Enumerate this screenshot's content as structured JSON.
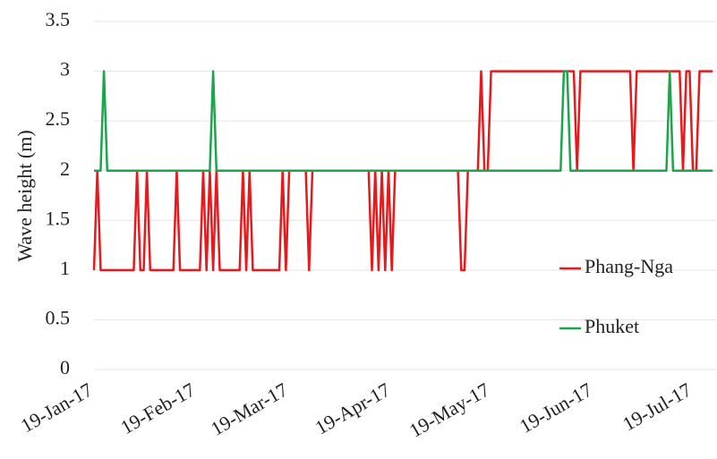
{
  "chart_data": {
    "type": "line",
    "y_label": "Wave height (m)",
    "ylim": [
      0,
      3.5
    ],
    "yticks": [
      0,
      0.5,
      1,
      1.5,
      2,
      2.5,
      3,
      3.5
    ],
    "xlim": [
      "2017-01-19",
      "2017-07-26"
    ],
    "xticks": [
      {
        "value": "2017-01-19",
        "label": "19-Jan-17"
      },
      {
        "value": "2017-02-19",
        "label": "19-Feb-17"
      },
      {
        "value": "2017-03-19",
        "label": "19-Mar-17"
      },
      {
        "value": "2017-04-19",
        "label": "19-Apr-17"
      },
      {
        "value": "2017-05-19",
        "label": "19-May-17"
      },
      {
        "value": "2017-06-19",
        "label": "19-Jun-17"
      },
      {
        "value": "2017-07-19",
        "label": "19-Jul-17"
      }
    ],
    "grid": true,
    "legend": "right",
    "series": [
      {
        "name": "Phang-Nga",
        "color": "#e8191c",
        "x": [
          "2017-01-19",
          "2017-01-20",
          "2017-01-21",
          "2017-01-31",
          "2017-02-01",
          "2017-02-02",
          "2017-02-03",
          "2017-02-04",
          "2017-02-05",
          "2017-02-12",
          "2017-02-13",
          "2017-02-14",
          "2017-02-20",
          "2017-02-21",
          "2017-02-22",
          "2017-02-23",
          "2017-02-24",
          "2017-02-25",
          "2017-02-26",
          "2017-03-04",
          "2017-03-05",
          "2017-03-06",
          "2017-03-07",
          "2017-03-08",
          "2017-03-16",
          "2017-03-17",
          "2017-03-18",
          "2017-03-19",
          "2017-03-24",
          "2017-03-25",
          "2017-03-26",
          "2017-04-12",
          "2017-04-13",
          "2017-04-14",
          "2017-04-15",
          "2017-04-16",
          "2017-04-17",
          "2017-04-18",
          "2017-04-19",
          "2017-04-20",
          "2017-05-09",
          "2017-05-10",
          "2017-05-11",
          "2017-05-12",
          "2017-05-15",
          "2017-05-16",
          "2017-05-17",
          "2017-05-18",
          "2017-05-19",
          "2017-06-13",
          "2017-06-14",
          "2017-06-15",
          "2017-06-30",
          "2017-07-01",
          "2017-07-02",
          "2017-07-15",
          "2017-07-16",
          "2017-07-17",
          "2017-07-18",
          "2017-07-19",
          "2017-07-20",
          "2017-07-21",
          "2017-07-25"
        ],
        "values": [
          1,
          2,
          1,
          1,
          2,
          1,
          1,
          2,
          1,
          1,
          2,
          1,
          1,
          2,
          1,
          2,
          1,
          2,
          1,
          1,
          2,
          1,
          2,
          1,
          1,
          2,
          1,
          2,
          2,
          1,
          2,
          2,
          1,
          2,
          1,
          2,
          1,
          2,
          1,
          2,
          2,
          1,
          1,
          2,
          2,
          3,
          2,
          2,
          3,
          3,
          2,
          3,
          3,
          2,
          3,
          3,
          2,
          3,
          3,
          2,
          2,
          3,
          3
        ]
      },
      {
        "name": "Phuket",
        "color": "#1aa64a",
        "x": [
          "2017-01-19",
          "2017-01-21",
          "2017-01-22",
          "2017-01-23",
          "2017-02-23",
          "2017-02-24",
          "2017-02-25",
          "2017-06-09",
          "2017-06-10",
          "2017-06-11",
          "2017-06-12",
          "2017-07-11",
          "2017-07-12",
          "2017-07-13",
          "2017-07-25"
        ],
        "values": [
          2,
          2,
          3,
          2,
          2,
          3,
          2,
          2,
          3,
          3,
          2,
          2,
          3,
          2,
          2
        ]
      }
    ]
  }
}
